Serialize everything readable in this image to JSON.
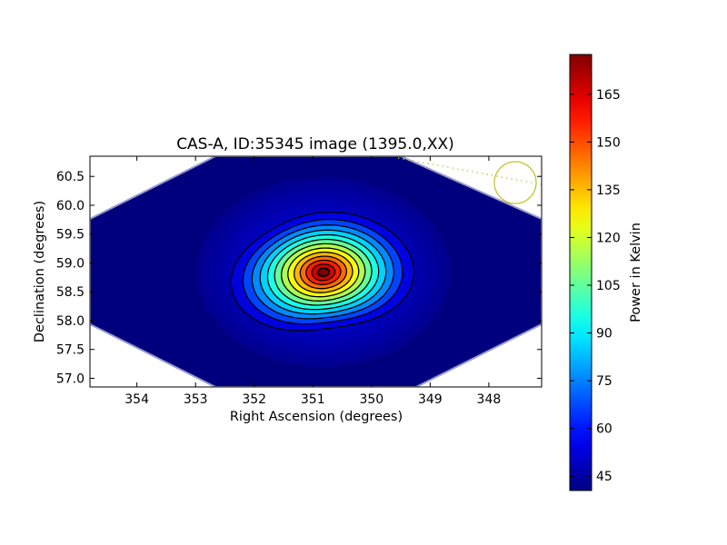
{
  "chart_data": {
    "type": "heatmap",
    "title": "CAS-A, ID:35345 image (1395.0,XX)",
    "xlabel": "Right Ascension (degrees)",
    "ylabel": "Declination (degrees)",
    "xlim": [
      354.8,
      347.1
    ],
    "ylim": [
      56.85,
      60.85
    ],
    "x_inverted": true,
    "xticks": [
      354,
      353,
      352,
      351,
      350,
      349,
      348
    ],
    "xtick_labels": [
      "354",
      "353",
      "352",
      "351",
      "350",
      "349",
      "348"
    ],
    "yticks": [
      57.0,
      57.5,
      58.0,
      58.5,
      59.0,
      59.5,
      60.0,
      60.5
    ],
    "ytick_labels": [
      "57.0",
      "57.5",
      "58.0",
      "58.5",
      "59.0",
      "59.5",
      "60.0",
      "60.5"
    ],
    "colormap": "jet",
    "colorbar": {
      "label": "Power in Kelvin",
      "min": 40.5,
      "max": 177.5,
      "ticks": [
        45,
        60,
        75,
        90,
        105,
        120,
        135,
        150,
        165
      ],
      "tick_labels": [
        "45",
        "60",
        "75",
        "90",
        "105",
        "120",
        "135",
        "150",
        "165"
      ]
    },
    "source": {
      "ra": 350.82,
      "dec": 58.84,
      "peak_kelvin": 177,
      "background_kelvin": 42
    },
    "contour_count": 13,
    "contour_color": "#000000",
    "beam_marker_color": "#bfbf2a",
    "grid": false,
    "legend": "none"
  }
}
